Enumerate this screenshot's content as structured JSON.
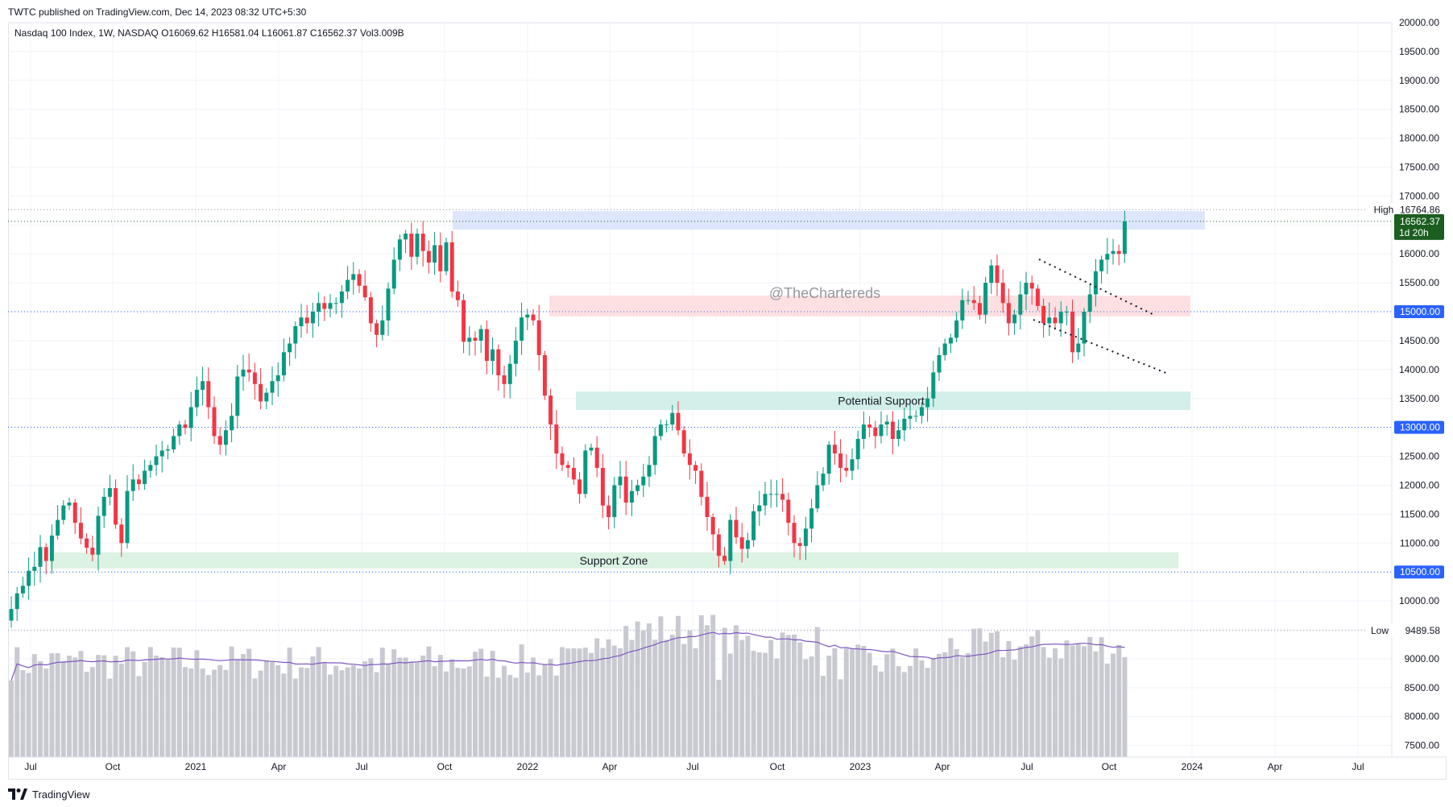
{
  "header": {
    "published_line": "TWTC published on TradingView.com, Dec 14, 2023 08:32 UTC+5:30"
  },
  "legend": {
    "symbol_line": "Nasdaq 100 Index, 1W, NASDAQ  O16069.62  H16581.04  L16061.87  C16562.37  Vol3.009B"
  },
  "watermark": "@TheChartereds",
  "footer": {
    "brand": "TradingView"
  },
  "colors": {
    "up": "#089981",
    "down": "#f23645",
    "volume": "#c9cad1",
    "volume_ma": "#7e57c2",
    "grid": "#f0f3fa",
    "level_line": "#2962ff",
    "price_badge": "#1b5e20"
  },
  "chart_data": {
    "type": "candlestick",
    "ylim": [
      7300,
      20000
    ],
    "x_labels": [
      "Jul",
      "Oct",
      "2021",
      "Apr",
      "Jul",
      "Oct",
      "2022",
      "Apr",
      "Jul",
      "Oct",
      "2023",
      "Apr",
      "Jul",
      "Oct",
      "2024",
      "Apr",
      "Jul"
    ],
    "y_ticks": [
      7500,
      8000,
      8500,
      9000,
      9500,
      10000,
      10500,
      11000,
      11500,
      12000,
      12500,
      13000,
      13500,
      14000,
      14500,
      15000,
      15500,
      16000,
      16500,
      17000,
      17500,
      18000,
      18500,
      19000,
      19500,
      20000
    ],
    "y_tick_labels": [
      "7500.00",
      "8000.00",
      "8500.00",
      "9000.00",
      "9500.00",
      "10000.00",
      "10500.00",
      "11000.00",
      "11500.00",
      "12000.00",
      "12500.00",
      "13000.00",
      "13500.00",
      "14000.00",
      "14500.00",
      "15000.00",
      "15500.00",
      "16000.00",
      "16500.00",
      "17000.00",
      "17500.00",
      "18000.00",
      "18500.00",
      "19000.00",
      "19500.00",
      "20000.00"
    ],
    "highlighted_levels": [
      {
        "value": 15000,
        "label": "15000.00"
      },
      {
        "value": 13000,
        "label": "13000.00"
      },
      {
        "value": 10500,
        "label": "10500.00"
      }
    ],
    "high_marker": {
      "label": "High",
      "value": 16764.86,
      "value_label": "16764.86"
    },
    "low_marker": {
      "label": "Low",
      "value": 9489.58,
      "value_label": "9489.58"
    },
    "last_price": {
      "value": 16562.37,
      "label": "16562.37",
      "countdown": "1d 20h"
    },
    "zones": [
      {
        "name": "resistance-zone",
        "label": "",
        "from": 16420,
        "to": 16740,
        "color": "#dde6fb"
      },
      {
        "name": "pink-zone",
        "label": "",
        "from": 14920,
        "to": 15280,
        "color": "#fde0e2"
      },
      {
        "name": "potential-support-zone",
        "label": "Potential Support",
        "from": 13300,
        "to": 13620,
        "color": "#d3efe9"
      },
      {
        "name": "support-zone",
        "label": "Support Zone",
        "from": 10560,
        "to": 10840,
        "color": "#dcf2e3"
      }
    ],
    "closes": [
      9860,
      10130,
      10260,
      10520,
      10590,
      10930,
      10690,
      11130,
      11400,
      11650,
      11700,
      11350,
      11080,
      10920,
      10800,
      11470,
      11800,
      11950,
      11320,
      11000,
      11900,
      12100,
      12020,
      12250,
      12350,
      12500,
      12600,
      12620,
      12850,
      13050,
      12990,
      13350,
      13650,
      13800,
      13350,
      12850,
      12700,
      12950,
      13200,
      13880,
      14000,
      13950,
      13750,
      13450,
      13600,
      13800,
      13900,
      14300,
      14450,
      14750,
      14900,
      14800,
      15000,
      15150,
      15050,
      15150,
      15150,
      15350,
      15550,
      15650,
      15450,
      15250,
      14800,
      14600,
      14850,
      15400,
      15900,
      16250,
      16350,
      15950,
      16350,
      16050,
      15850,
      16150,
      15700,
      16200,
      15350,
      15200,
      14480,
      14550,
      14500,
      14700,
      14150,
      14350,
      13900,
      13750,
      14100,
      14500,
      14900,
      14950,
      14850,
      14250,
      13550,
      13050,
      12550,
      12350,
      12300,
      12100,
      11850,
      12600,
      12650,
      12300,
      11650,
      11450,
      12000,
      12150,
      11700,
      11900,
      12000,
      12150,
      12350,
      12850,
      13050,
      13050,
      13250,
      12950,
      12550,
      12350,
      12250,
      11800,
      11450,
      11150,
      10780,
      10690,
      11400,
      11100,
      10900,
      11050,
      11550,
      11650,
      11850,
      11850,
      11850,
      11750,
      11350,
      11000,
      10950,
      11250,
      11600,
      12000,
      12200,
      12700,
      12550,
      12300,
      12250,
      12450,
      12800,
      13050,
      13000,
      12850,
      13050,
      13100,
      12800,
      12950,
      13150,
      13200,
      13200,
      13350,
      13500,
      13950,
      14250,
      14450,
      14550,
      14850,
      15200,
      15200,
      15150,
      14950,
      15500,
      15800,
      15500,
      15150,
      14800,
      14950,
      15300,
      15500,
      15400,
      15100,
      14800,
      14900,
      14800,
      15000,
      15000,
      14300,
      14450,
      15000,
      15300,
      15700,
      15900,
      16000,
      16050,
      16000,
      16562
    ]
  }
}
